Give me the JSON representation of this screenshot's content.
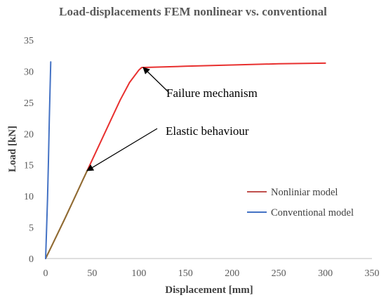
{
  "chart_data": {
    "type": "line",
    "title": "Load-displacements FEM nonlinear vs. conventional",
    "xlabel": "Displacement [mm]",
    "ylabel": "Load [kN]",
    "xlim": [
      0,
      350
    ],
    "ylim": [
      0,
      35
    ],
    "xticks": [
      0,
      50,
      100,
      150,
      200,
      250,
      300,
      350
    ],
    "yticks": [
      0,
      5,
      10,
      15,
      20,
      25,
      30,
      35
    ],
    "grid": false,
    "legend_position": "right",
    "series": [
      {
        "name": "Nonliniar model",
        "color": "#e8302f",
        "x": [
          0,
          10,
          20,
          30,
          40,
          50,
          60,
          70,
          80,
          90,
          100,
          103,
          150,
          200,
          250,
          300
        ],
        "y": [
          0,
          3.1,
          6.2,
          9.4,
          12.6,
          15.8,
          19.0,
          22.2,
          25.4,
          28.2,
          30.2,
          30.6,
          30.8,
          31.0,
          31.2,
          31.3
        ]
      },
      {
        "name": "Conventional model",
        "color": "#4472c4",
        "x": [
          0,
          1,
          2,
          3,
          4,
          5.5
        ],
        "y": [
          0,
          4.5,
          9.5,
          15.5,
          22.5,
          31.5
        ]
      }
    ],
    "elastic_overlay": {
      "color": "#8b6f33",
      "x": [
        0,
        10,
        20,
        30,
        40,
        45
      ],
      "y": [
        0,
        3.1,
        6.2,
        9.4,
        12.6,
        14.2
      ]
    },
    "annotations": [
      {
        "text": "Failure mechanism",
        "point": [
          103,
          30.6
        ]
      },
      {
        "text": "Elastic behaviour",
        "point": [
          45,
          14.0
        ]
      }
    ]
  }
}
